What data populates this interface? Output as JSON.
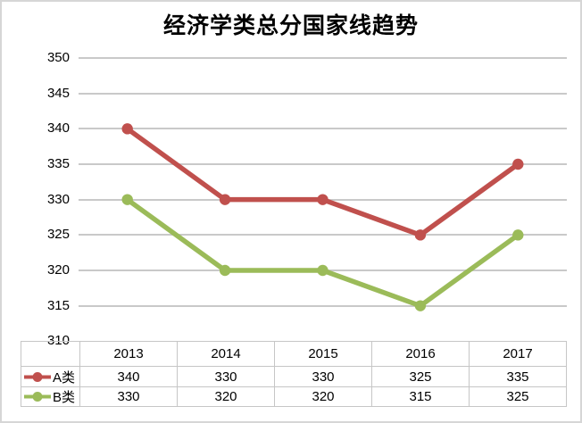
{
  "title": "经济学类总分国家线趋势",
  "chart_data": {
    "type": "line",
    "title": "经济学类总分国家线趋势",
    "categories": [
      "2013",
      "2014",
      "2015",
      "2016",
      "2017"
    ],
    "series": [
      {
        "name": "A类",
        "color": "#c0504d",
        "values": [
          340,
          330,
          330,
          325,
          335
        ]
      },
      {
        "name": "B类",
        "color": "#9bbb59",
        "values": [
          330,
          320,
          320,
          315,
          325
        ]
      }
    ],
    "ylim": [
      310,
      350
    ],
    "yticks": [
      350,
      345,
      340,
      335,
      330,
      325,
      320,
      315,
      310
    ],
    "ytick_step": 5,
    "grid": true,
    "legend_position": "data-table-left",
    "data_table_shown": true,
    "gridline_color": "#c9c9c9",
    "table_border_color": "#c6c6c6",
    "background_color": "#ffffff"
  }
}
